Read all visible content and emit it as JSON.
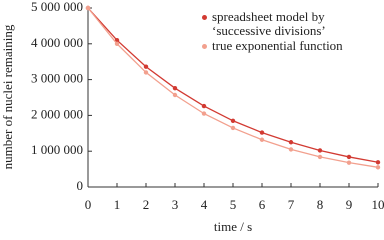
{
  "chart_data": {
    "type": "line",
    "x_label": "time / s",
    "y_label": "number of nuclei remaining",
    "x": [
      0,
      1,
      2,
      3,
      4,
      5,
      6,
      7,
      8,
      9,
      10
    ],
    "xlim": [
      0,
      10
    ],
    "xticks": [
      0,
      1,
      2,
      3,
      4,
      5,
      6,
      7,
      8,
      9,
      10
    ],
    "ylim": [
      0,
      5000000
    ],
    "yticks": [
      0,
      {
        "value": 1000000,
        "label": "1 000 000"
      },
      {
        "value": 2000000,
        "label": "2 000 000"
      },
      {
        "value": 3000000,
        "label": "3 000 000"
      },
      {
        "value": 4000000,
        "label": "4 000 000"
      },
      {
        "value": 5000000,
        "label": "5 000 000"
      }
    ],
    "legend": "upper right",
    "series": [
      {
        "name": "spreadsheet model by ‘successive divisions’",
        "color": "#d23a32",
        "values": [
          5000000,
          4100000,
          3360000,
          2760000,
          2260000,
          1850000,
          1520000,
          1250000,
          1020000,
          840000,
          690000
        ]
      },
      {
        "name": "true exponential function",
        "color": "#f2a08e",
        "values": [
          5000000,
          4000000,
          3200000,
          2570000,
          2050000,
          1650000,
          1320000,
          1050000,
          840000,
          680000,
          550000
        ]
      }
    ]
  }
}
